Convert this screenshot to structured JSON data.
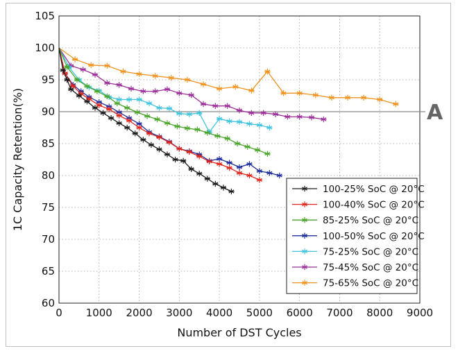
{
  "chart_data": {
    "type": "line",
    "title": "",
    "xlabel": "Number of DST Cycles",
    "ylabel": "1C Capacity Retention(%)",
    "xlim": [
      0,
      9000
    ],
    "ylim": [
      60,
      105
    ],
    "xticks": [
      0,
      1000,
      2000,
      3000,
      4000,
      5000,
      6000,
      7000,
      8000,
      9000
    ],
    "yticks": [
      60,
      65,
      70,
      75,
      80,
      85,
      90,
      95,
      100,
      105
    ],
    "grid": true,
    "reference_line": {
      "y": 90,
      "label": "A"
    },
    "legend_position": "bottom-right",
    "series": [
      {
        "name": "100-25% SoC @ 20°C",
        "color": "#1a1a1a",
        "marker": "asterisk",
        "x": [
          0,
          100,
          200,
          300,
          500,
          700,
          900,
          1100,
          1300,
          1500,
          1700,
          1900,
          2100,
          2300,
          2500,
          2700,
          2900,
          3100,
          3300,
          3500,
          3700,
          3900,
          4100,
          4300
        ],
        "y": [
          100,
          96.5,
          95,
          93.5,
          92.5,
          91.6,
          90.6,
          89.8,
          89.0,
          88.2,
          87.5,
          86.6,
          85.6,
          84.8,
          84.1,
          83.3,
          82.5,
          82.3,
          81.0,
          80.3,
          79.5,
          78.7,
          78.1,
          77.5
        ]
      },
      {
        "name": "100-40% SoC @ 20°C",
        "color": "#e0251b",
        "marker": "asterisk",
        "x": [
          0,
          150,
          350,
          550,
          750,
          1000,
          1250,
          1500,
          1750,
          2000,
          2250,
          2500,
          2750,
          3000,
          3250,
          3500,
          3750,
          4000,
          4250,
          4500,
          4750,
          5000
        ],
        "y": [
          100,
          96,
          94,
          92.8,
          92,
          91.0,
          90.4,
          89.4,
          88.6,
          87.5,
          86.6,
          86.0,
          85.2,
          84.2,
          83.7,
          83.0,
          82.2,
          81.8,
          81.2,
          80.4,
          80.0,
          79.3
        ]
      },
      {
        "name": "85-25% SoC @ 20°C",
        "color": "#4aa52a",
        "marker": "asterisk",
        "x": [
          0,
          200,
          450,
          700,
          950,
          1200,
          1450,
          1700,
          1950,
          2200,
          2450,
          2700,
          2950,
          3200,
          3450,
          3700,
          3950,
          4200,
          4450,
          4700,
          4950,
          5200
        ],
        "y": [
          100,
          97,
          95,
          94,
          93.2,
          92.4,
          91.3,
          90.6,
          89.9,
          89.3,
          88.8,
          88.2,
          87.7,
          87.4,
          87.2,
          86.7,
          86.2,
          85.8,
          85.0,
          84.5,
          84.0,
          83.4
        ]
      },
      {
        "name": "100-50% SoC @ 20°C",
        "color": "#1f2e9a",
        "marker": "asterisk",
        "x": [
          0,
          150,
          350,
          550,
          750,
          1000,
          1250,
          1500,
          1750,
          2000,
          2250,
          2500,
          2750,
          3000,
          3250,
          3500,
          3750,
          4000,
          4250,
          4500,
          4750,
          5000,
          5250,
          5500
        ],
        "y": [
          100,
          96,
          94.2,
          93.2,
          92.3,
          91.5,
          90.8,
          89.9,
          89.0,
          88.1,
          86.8,
          86.1,
          85.3,
          84.2,
          83.8,
          83.3,
          82.3,
          82.6,
          82.0,
          81.3,
          81.8,
          80.7,
          80.4,
          80.0
        ]
      },
      {
        "name": "75-25% SoC @ 20°C",
        "color": "#40c4e0",
        "marker": "asterisk",
        "x": [
          0,
          250,
          500,
          750,
          1000,
          1250,
          1500,
          1750,
          2000,
          2250,
          2500,
          2750,
          3000,
          3250,
          3500,
          3750,
          4000,
          4250,
          4500,
          4750,
          5000,
          5250
        ],
        "y": [
          100,
          97,
          95,
          93.8,
          93.3,
          92.3,
          91.9,
          91.9,
          91.9,
          91.3,
          90.6,
          90.5,
          89.7,
          89.6,
          89.8,
          86.8,
          88.9,
          88.5,
          88.4,
          88.1,
          87.9,
          87.5
        ]
      },
      {
        "name": "75-45% SoC @ 20°C",
        "color": "#9c2e9a",
        "marker": "asterisk",
        "x": [
          0,
          300,
          600,
          900,
          1200,
          1500,
          1800,
          2100,
          2400,
          2700,
          3000,
          3300,
          3600,
          3900,
          4200,
          4500,
          4800,
          5100,
          5400,
          5700,
          6000,
          6300,
          6600
        ],
        "y": [
          100,
          97.2,
          96.6,
          95.8,
          94.5,
          94.2,
          93.6,
          93.2,
          93.2,
          93.5,
          92.9,
          92.6,
          91.2,
          90.9,
          90.9,
          90.2,
          89.8,
          89.8,
          89.6,
          89.2,
          89.2,
          89.1,
          88.8
        ]
      },
      {
        "name": "75-65% SoC @ 20°C",
        "color": "#f0921e",
        "marker": "asterisk",
        "x": [
          0,
          400,
          800,
          1200,
          1600,
          2000,
          2400,
          2800,
          3200,
          3600,
          4000,
          4400,
          4800,
          5200,
          5600,
          6000,
          6400,
          6800,
          7200,
          7600,
          8000,
          8400
        ],
        "y": [
          100,
          98.2,
          97.3,
          97.2,
          96.3,
          95.9,
          95.6,
          95.3,
          95.0,
          94.3,
          93.6,
          93.9,
          93.3,
          96.3,
          92.9,
          92.9,
          92.6,
          92.2,
          92.2,
          92.2,
          91.9,
          91.2
        ]
      }
    ]
  }
}
